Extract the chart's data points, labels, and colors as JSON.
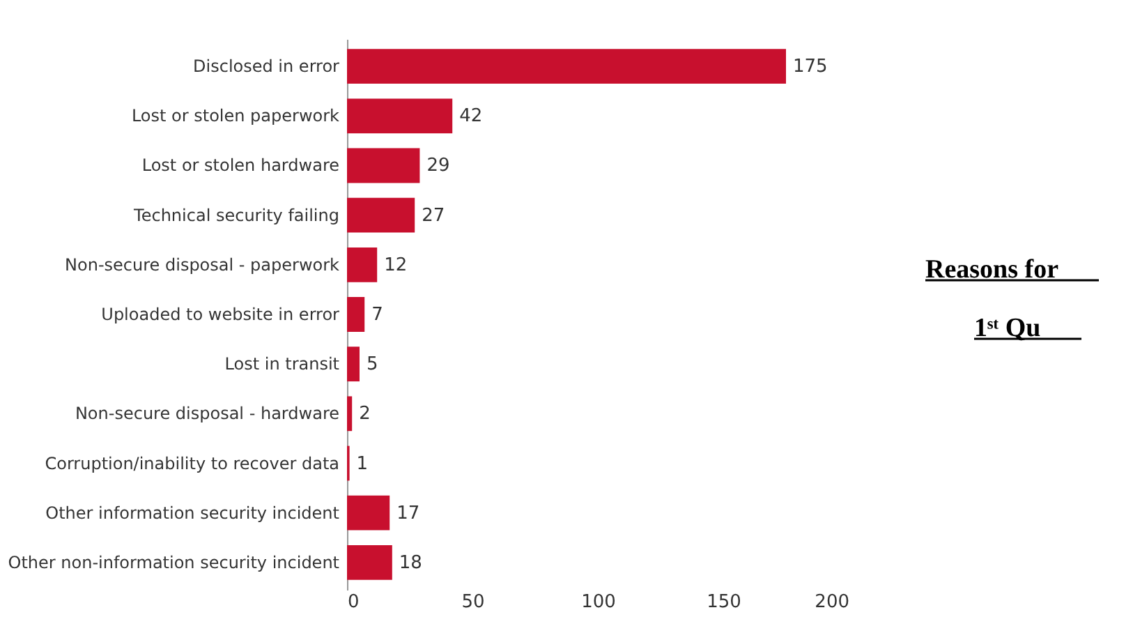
{
  "chart_data": {
    "type": "bar",
    "orientation": "horizontal",
    "categories": [
      "Disclosed in error",
      "Lost or stolen paperwork",
      "Lost or stolen hardware",
      "Technical security failing",
      "Non-secure disposal - paperwork",
      "Uploaded to website in error",
      "Lost in transit",
      "Non-secure disposal - hardware",
      "Corruption/inability to recover data",
      "Other information security incident",
      "Other non-information security incident"
    ],
    "values": [
      175,
      42,
      29,
      27,
      12,
      7,
      5,
      2,
      1,
      17,
      18
    ],
    "color": "#c8102e",
    "xlim": [
      0,
      200
    ],
    "xticks": [
      0,
      50,
      100,
      150,
      200
    ],
    "data_labels": true,
    "grid": false,
    "annotations": [
      "Reasons for",
      "1ˢᵗ Qu"
    ]
  }
}
